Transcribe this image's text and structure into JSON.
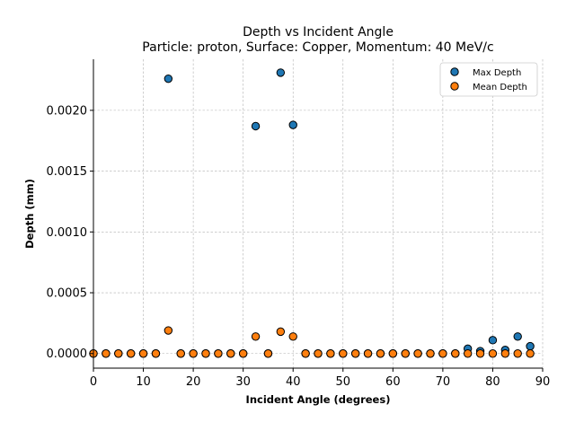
{
  "chart_data": {
    "type": "scatter",
    "title": "Depth vs Incident Angle",
    "subtitle": "Particle: proton, Surface: Copper, Momentum: 40 MeV/c",
    "xlabel": "Incident Angle (degrees)",
    "ylabel": "Depth (mm)",
    "xlim": [
      0,
      90
    ],
    "ylim": [
      -0.00012,
      0.00242
    ],
    "xticks": [
      0,
      10,
      20,
      30,
      40,
      50,
      60,
      70,
      80,
      90
    ],
    "xtick_labels": [
      "0",
      "10",
      "20",
      "30",
      "40",
      "50",
      "60",
      "70",
      "80",
      "90"
    ],
    "yticks": [
      0.0,
      0.0005,
      0.001,
      0.0015,
      0.002
    ],
    "ytick_labels": [
      "0.0000",
      "0.0005",
      "0.0010",
      "0.0015",
      "0.0020"
    ],
    "grid": true,
    "legend_position": "top-right",
    "x": [
      0,
      2.5,
      5,
      7.5,
      10,
      12.5,
      15,
      17.5,
      20,
      22.5,
      25,
      27.5,
      30,
      32.5,
      35,
      37.5,
      40,
      42.5,
      45,
      47.5,
      50,
      52.5,
      55,
      57.5,
      60,
      62.5,
      65,
      67.5,
      70,
      72.5,
      75,
      77.5,
      80,
      82.5,
      85,
      87.5
    ],
    "series": [
      {
        "name": "Max Depth",
        "color": "#1f77b4",
        "values": [
          0,
          0,
          0,
          0,
          0,
          0,
          0.00226,
          0,
          0,
          0,
          0,
          0,
          0,
          0.00187,
          0,
          0.00231,
          0.00188,
          0,
          0,
          0,
          0,
          0,
          0,
          0,
          0,
          0,
          0,
          0,
          0,
          0,
          4e-05,
          2e-05,
          0.00011,
          3e-05,
          0.00014,
          6e-05
        ]
      },
      {
        "name": "Mean Depth",
        "color": "#ff7f0e",
        "values": [
          0,
          0,
          0,
          0,
          0,
          0,
          0.00019,
          0,
          0,
          0,
          0,
          0,
          0,
          0.00014,
          0,
          0.00018,
          0.00014,
          0,
          0,
          0,
          0,
          0,
          0,
          0,
          0,
          0,
          0,
          0,
          0,
          0,
          0,
          0,
          0,
          0,
          0,
          0
        ]
      }
    ]
  }
}
